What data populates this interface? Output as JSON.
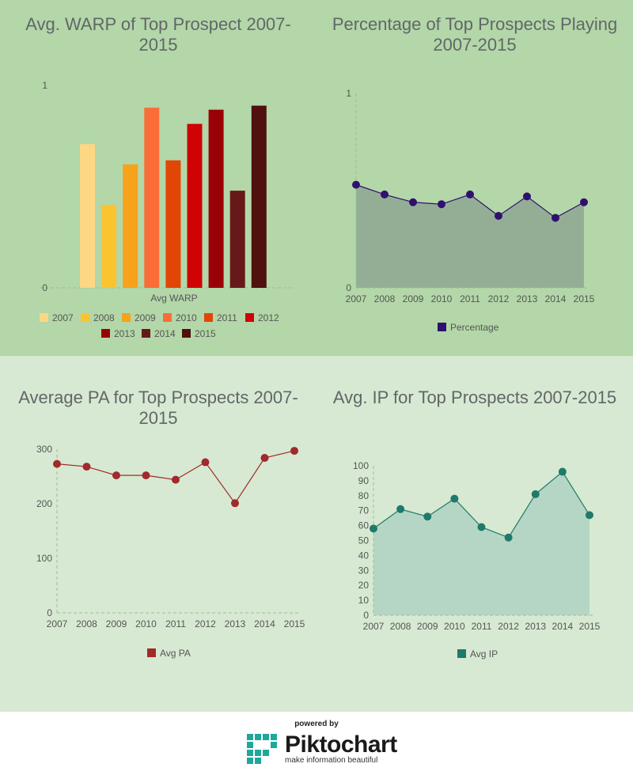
{
  "chart_data": [
    {
      "id": "warp",
      "type": "bar",
      "title": "Avg. WARP of Top Prospect 2007-2015",
      "xlabel": "Avg WARP",
      "ylim": [
        0,
        1
      ],
      "yticks": [
        "0",
        "1"
      ],
      "categories": [
        "Avg WARP"
      ],
      "series": [
        {
          "name": "2007",
          "value": 0.71,
          "color": "#fdd783"
        },
        {
          "name": "2008",
          "value": 0.41,
          "color": "#fbc42f"
        },
        {
          "name": "2009",
          "value": 0.61,
          "color": "#f7a21b"
        },
        {
          "name": "2010",
          "value": 0.89,
          "color": "#fb6d37"
        },
        {
          "name": "2011",
          "value": 0.63,
          "color": "#e24607"
        },
        {
          "name": "2012",
          "value": 0.81,
          "color": "#cf0305"
        },
        {
          "name": "2013",
          "value": 0.88,
          "color": "#9a0106"
        },
        {
          "name": "2014",
          "value": 0.48,
          "color": "#661918"
        },
        {
          "name": "2015",
          "value": 0.9,
          "color": "#4f100e"
        }
      ],
      "grid": false,
      "legend": "bottom"
    },
    {
      "id": "pct",
      "type": "area",
      "title": "Percentage of Top Prospects Playing 2007-2015",
      "x": [
        "2007",
        "2008",
        "2009",
        "2010",
        "2011",
        "2012",
        "2013",
        "2014",
        "2015"
      ],
      "ylim": [
        0,
        1
      ],
      "yticks": [
        "0",
        "1"
      ],
      "series": [
        {
          "name": "Percentage",
          "values": [
            0.53,
            0.48,
            0.44,
            0.43,
            0.48,
            0.37,
            0.47,
            0.36,
            0.44
          ],
          "color": "#30106e",
          "fill": "#94ae96"
        }
      ],
      "grid": false,
      "legend": "bottom"
    },
    {
      "id": "pa",
      "type": "line",
      "title": "Average PA for Top Prospects 2007-2015",
      "x": [
        "2007",
        "2008",
        "2009",
        "2010",
        "2011",
        "2012",
        "2013",
        "2014",
        "2015"
      ],
      "ylim": [
        0,
        300
      ],
      "yticks": [
        "0",
        "100",
        "200",
        "300"
      ],
      "series": [
        {
          "name": "Avg PA",
          "values": [
            273,
            268,
            252,
            252,
            244,
            276,
            201,
            284,
            297
          ],
          "color": "#a12a2a"
        }
      ],
      "grid": false,
      "legend": "bottom"
    },
    {
      "id": "ip",
      "type": "area",
      "title": "Avg. IP for Top Prospects 2007-2015",
      "x": [
        "2007",
        "2008",
        "2009",
        "2010",
        "2011",
        "2012",
        "2013",
        "2014",
        "2015"
      ],
      "ylim": [
        0,
        100
      ],
      "yticks": [
        "0",
        "10",
        "20",
        "30",
        "40",
        "50",
        "60",
        "70",
        "80",
        "90",
        "100"
      ],
      "series": [
        {
          "name": "Avg IP",
          "values": [
            58,
            71,
            66,
            78,
            59,
            52,
            81,
            96,
            67
          ],
          "color": "#1f7a6a",
          "fill": "#b5d6c4"
        }
      ],
      "grid": false,
      "legend": "bottom"
    }
  ],
  "footer": {
    "powered": "powered by",
    "brand": "Piktochart",
    "tagline": "make information beautiful"
  }
}
